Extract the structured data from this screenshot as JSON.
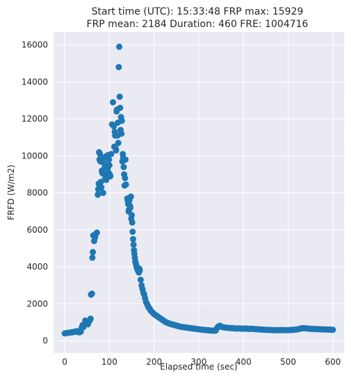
{
  "chart_data": {
    "type": "scatter",
    "title_lines": [
      "Start time (UTC): 15:33:48 FRP max: 15929",
      "FRP mean: 2184 Duration: 460 FRE: 1004716"
    ],
    "xlabel": "Elapsed time (sec)",
    "ylabel": "FRFD (W/m2)",
    "xlim": [
      -25,
      625
    ],
    "ylim": [
      -650,
      16700
    ],
    "xticks": [
      0,
      100,
      200,
      300,
      400,
      500,
      600
    ],
    "yticks": [
      0,
      2000,
      4000,
      6000,
      8000,
      10000,
      12000,
      14000,
      16000
    ],
    "grid": true,
    "marker_color": "#1f77b4",
    "background_color": "#eaeaf2",
    "points": [
      [
        0,
        400
      ],
      [
        3,
        420
      ],
      [
        6,
        430
      ],
      [
        9,
        440
      ],
      [
        12,
        450
      ],
      [
        15,
        460
      ],
      [
        18,
        470
      ],
      [
        21,
        490
      ],
      [
        24,
        500
      ],
      [
        27,
        520
      ],
      [
        30,
        480
      ],
      [
        33,
        460
      ],
      [
        36,
        500
      ],
      [
        38,
        700
      ],
      [
        40,
        850
      ],
      [
        42,
        750
      ],
      [
        44,
        900
      ],
      [
        46,
        1100
      ],
      [
        48,
        950
      ],
      [
        50,
        1000
      ],
      [
        52,
        900
      ],
      [
        54,
        1050
      ],
      [
        56,
        1100
      ],
      [
        58,
        1200
      ],
      [
        59,
        2500
      ],
      [
        61,
        2550
      ],
      [
        62,
        4500
      ],
      [
        63,
        4800
      ],
      [
        64,
        5700
      ],
      [
        66,
        5400
      ],
      [
        68,
        5600
      ],
      [
        70,
        5800
      ],
      [
        72,
        5850
      ],
      [
        74,
        7900
      ],
      [
        75,
        8200
      ],
      [
        76,
        8500
      ],
      [
        77,
        10200
      ],
      [
        78,
        9800
      ],
      [
        79,
        10100
      ],
      [
        80,
        9700
      ],
      [
        81,
        8600
      ],
      [
        82,
        8300
      ],
      [
        83,
        9200
      ],
      [
        84,
        9100
      ],
      [
        85,
        9050
      ],
      [
        86,
        8000
      ],
      [
        87,
        9900
      ],
      [
        88,
        9600
      ],
      [
        90,
        9400
      ],
      [
        91,
        8800
      ],
      [
        92,
        9000
      ],
      [
        93,
        8700
      ],
      [
        94,
        10000
      ],
      [
        96,
        9300
      ],
      [
        97,
        10050
      ],
      [
        98,
        9100
      ],
      [
        99,
        9800
      ],
      [
        100,
        9500
      ],
      [
        101,
        9000
      ],
      [
        102,
        8900
      ],
      [
        104,
        10100
      ],
      [
        106,
        11700
      ],
      [
        108,
        12900
      ],
      [
        110,
        11600
      ],
      [
        111,
        10500
      ],
      [
        112,
        11300
      ],
      [
        113,
        11100
      ],
      [
        114,
        10400
      ],
      [
        115,
        10300
      ],
      [
        116,
        12400
      ],
      [
        117,
        12500
      ],
      [
        118,
        11100
      ],
      [
        119,
        11800
      ],
      [
        120,
        10700
      ],
      [
        121,
        14800
      ],
      [
        122,
        15900
      ],
      [
        123,
        13200
      ],
      [
        124,
        12600
      ],
      [
        125,
        11400
      ],
      [
        126,
        12100
      ],
      [
        127,
        11200
      ],
      [
        128,
        11900
      ],
      [
        129,
        9700
      ],
      [
        130,
        10100
      ],
      [
        131,
        9900
      ],
      [
        132,
        9400
      ],
      [
        133,
        9000
      ],
      [
        134,
        8400
      ],
      [
        135,
        8800
      ],
      [
        136,
        9800
      ],
      [
        137,
        8450
      ],
      [
        140,
        7700
      ],
      [
        141,
        7600
      ],
      [
        142,
        7400
      ],
      [
        143,
        7000
      ],
      [
        144,
        7100
      ],
      [
        145,
        7600
      ],
      [
        146,
        7300
      ],
      [
        147,
        7200
      ],
      [
        148,
        7800
      ],
      [
        149,
        6600
      ],
      [
        150,
        6800
      ],
      [
        151,
        6400
      ],
      [
        152,
        5900
      ],
      [
        153,
        5500
      ],
      [
        154,
        5200
      ],
      [
        155,
        4900
      ],
      [
        156,
        4700
      ],
      [
        157,
        4500
      ],
      [
        158,
        4300
      ],
      [
        159,
        4200
      ],
      [
        160,
        4100
      ],
      [
        161,
        4000
      ],
      [
        162,
        3900
      ],
      [
        163,
        3850
      ],
      [
        164,
        3800
      ],
      [
        165,
        3750
      ],
      [
        166,
        3700
      ],
      [
        167,
        3900
      ],
      [
        168,
        3800
      ],
      [
        170,
        3300
      ],
      [
        172,
        3000
      ],
      [
        174,
        2800
      ],
      [
        176,
        2600
      ],
      [
        178,
        2500
      ],
      [
        180,
        2300
      ],
      [
        182,
        2100
      ],
      [
        184,
        2000
      ],
      [
        186,
        1900
      ],
      [
        188,
        1800
      ],
      [
        190,
        1750
      ],
      [
        192,
        1650
      ],
      [
        194,
        1600
      ],
      [
        196,
        1550
      ],
      [
        198,
        1500
      ],
      [
        200,
        1450
      ],
      [
        203,
        1400
      ],
      [
        206,
        1350
      ],
      [
        209,
        1300
      ],
      [
        212,
        1250
      ],
      [
        215,
        1200
      ],
      [
        218,
        1150
      ],
      [
        221,
        1100
      ],
      [
        224,
        1050
      ],
      [
        227,
        1000
      ],
      [
        230,
        980
      ],
      [
        233,
        950
      ],
      [
        236,
        920
      ],
      [
        239,
        900
      ],
      [
        242,
        880
      ],
      [
        245,
        860
      ],
      [
        248,
        840
      ],
      [
        251,
        820
      ],
      [
        254,
        800
      ],
      [
        257,
        780
      ],
      [
        260,
        760
      ],
      [
        263,
        750
      ],
      [
        266,
        740
      ],
      [
        269,
        730
      ],
      [
        272,
        720
      ],
      [
        275,
        710
      ],
      [
        278,
        700
      ],
      [
        281,
        690
      ],
      [
        284,
        680
      ],
      [
        287,
        670
      ],
      [
        290,
        660
      ],
      [
        293,
        650
      ],
      [
        296,
        640
      ],
      [
        299,
        630
      ],
      [
        302,
        620
      ],
      [
        305,
        610
      ],
      [
        308,
        600
      ],
      [
        311,
        600
      ],
      [
        314,
        590
      ],
      [
        317,
        580
      ],
      [
        320,
        580
      ],
      [
        323,
        570
      ],
      [
        326,
        560
      ],
      [
        329,
        560
      ],
      [
        332,
        550
      ],
      [
        335,
        550
      ],
      [
        338,
        560
      ],
      [
        341,
        700
      ],
      [
        343,
        760
      ],
      [
        345,
        800
      ],
      [
        347,
        820
      ],
      [
        349,
        790
      ],
      [
        351,
        760
      ],
      [
        354,
        740
      ],
      [
        357,
        720
      ],
      [
        360,
        720
      ],
      [
        363,
        710
      ],
      [
        366,
        700
      ],
      [
        369,
        700
      ],
      [
        372,
        690
      ],
      [
        375,
        690
      ],
      [
        378,
        680
      ],
      [
        381,
        680
      ],
      [
        384,
        670
      ],
      [
        387,
        670
      ],
      [
        390,
        680
      ],
      [
        393,
        670
      ],
      [
        396,
        660
      ],
      [
        399,
        660
      ],
      [
        402,
        670
      ],
      [
        405,
        660
      ],
      [
        408,
        660
      ],
      [
        411,
        650
      ],
      [
        414,
        650
      ],
      [
        417,
        660
      ],
      [
        420,
        650
      ],
      [
        423,
        640
      ],
      [
        426,
        640
      ],
      [
        429,
        630
      ],
      [
        432,
        630
      ],
      [
        435,
        620
      ],
      [
        438,
        620
      ],
      [
        441,
        610
      ],
      [
        444,
        610
      ],
      [
        447,
        600
      ],
      [
        450,
        600
      ],
      [
        453,
        600
      ],
      [
        456,
        590
      ],
      [
        459,
        590
      ],
      [
        462,
        590
      ],
      [
        465,
        580
      ],
      [
        468,
        580
      ],
      [
        471,
        580
      ],
      [
        474,
        580
      ],
      [
        477,
        580
      ],
      [
        480,
        580
      ],
      [
        483,
        580
      ],
      [
        486,
        590
      ],
      [
        489,
        580
      ],
      [
        492,
        580
      ],
      [
        495,
        580
      ],
      [
        498,
        580
      ],
      [
        501,
        580
      ],
      [
        504,
        590
      ],
      [
        507,
        590
      ],
      [
        510,
        600
      ],
      [
        513,
        600
      ],
      [
        516,
        610
      ],
      [
        519,
        620
      ],
      [
        522,
        630
      ],
      [
        525,
        650
      ],
      [
        528,
        670
      ],
      [
        531,
        680
      ],
      [
        534,
        690
      ],
      [
        537,
        680
      ],
      [
        540,
        680
      ],
      [
        543,
        670
      ],
      [
        546,
        660
      ],
      [
        549,
        660
      ],
      [
        552,
        650
      ],
      [
        555,
        650
      ],
      [
        558,
        640
      ],
      [
        561,
        640
      ],
      [
        564,
        640
      ],
      [
        567,
        630
      ],
      [
        570,
        630
      ],
      [
        573,
        630
      ],
      [
        576,
        620
      ],
      [
        579,
        620
      ],
      [
        582,
        620
      ],
      [
        585,
        620
      ],
      [
        588,
        610
      ],
      [
        591,
        610
      ],
      [
        594,
        610
      ],
      [
        597,
        600
      ],
      [
        600,
        600
      ]
    ]
  }
}
